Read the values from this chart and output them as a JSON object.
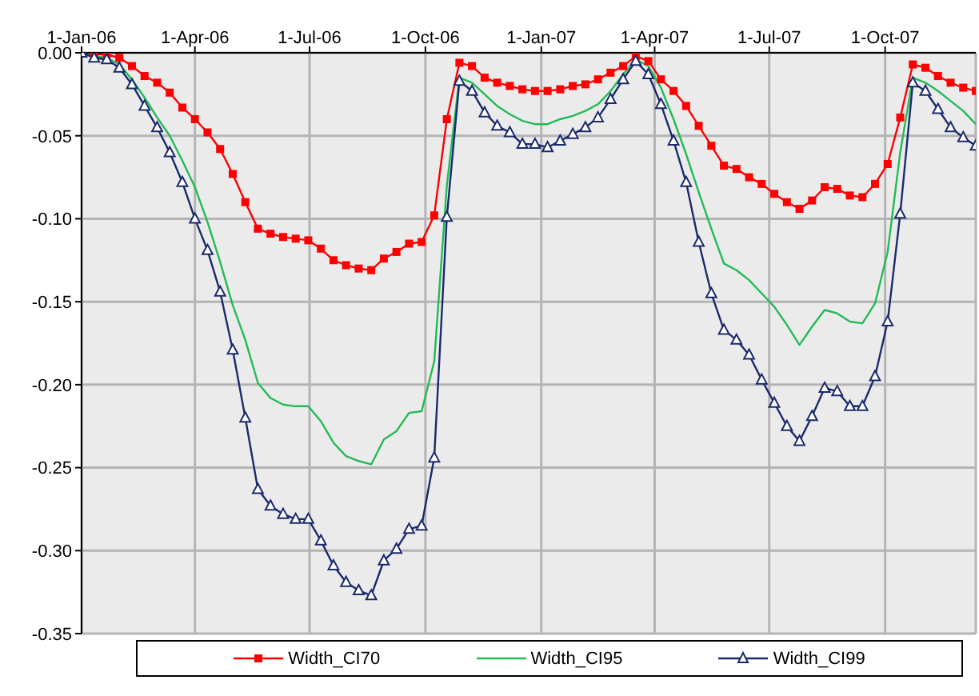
{
  "chart_data": {
    "type": "line",
    "x": [
      "2006-01-01",
      "2006-01-11",
      "2006-01-21",
      "2006-01-31",
      "2006-02-10",
      "2006-02-20",
      "2006-03-02",
      "2006-03-12",
      "2006-03-22",
      "2006-04-01",
      "2006-04-11",
      "2006-04-21",
      "2006-05-01",
      "2006-05-11",
      "2006-05-21",
      "2006-05-31",
      "2006-06-10",
      "2006-06-20",
      "2006-06-30",
      "2006-07-10",
      "2006-07-20",
      "2006-07-30",
      "2006-08-09",
      "2006-08-19",
      "2006-08-29",
      "2006-09-08",
      "2006-09-18",
      "2006-09-28",
      "2006-10-08",
      "2006-10-18",
      "2006-10-28",
      "2006-11-07",
      "2006-11-17",
      "2006-11-27",
      "2006-12-07",
      "2006-12-17",
      "2006-12-27",
      "2007-01-06",
      "2007-01-16",
      "2007-01-26",
      "2007-02-05",
      "2007-02-15",
      "2007-02-25",
      "2007-03-07",
      "2007-03-17",
      "2007-03-27",
      "2007-04-06",
      "2007-04-16",
      "2007-04-26",
      "2007-05-06",
      "2007-05-16",
      "2007-05-26",
      "2007-06-05",
      "2007-06-15",
      "2007-06-25",
      "2007-07-05",
      "2007-07-15",
      "2007-07-25",
      "2007-08-04",
      "2007-08-14",
      "2007-08-24",
      "2007-09-03",
      "2007-09-13",
      "2007-09-23",
      "2007-10-03",
      "2007-10-13",
      "2007-10-23",
      "2007-11-02",
      "2007-11-12",
      "2007-11-22",
      "2007-12-02",
      "2007-12-12"
    ],
    "series": [
      {
        "name": "Width_CI70",
        "color": "#ff0000",
        "marker": "square",
        "values": [
          0,
          -0.001,
          -0.001,
          -0.003,
          -0.008,
          -0.014,
          -0.018,
          -0.024,
          -0.033,
          -0.04,
          -0.048,
          -0.058,
          -0.073,
          -0.09,
          -0.106,
          -0.109,
          -0.111,
          -0.112,
          -0.113,
          -0.118,
          -0.125,
          -0.128,
          -0.13,
          -0.131,
          -0.124,
          -0.12,
          -0.115,
          -0.114,
          -0.098,
          -0.04,
          -0.006,
          -0.008,
          -0.015,
          -0.018,
          -0.02,
          -0.022,
          -0.023,
          -0.023,
          -0.022,
          -0.02,
          -0.019,
          -0.016,
          -0.012,
          -0.008,
          -0.002,
          -0.005,
          -0.016,
          -0.023,
          -0.032,
          -0.044,
          -0.056,
          -0.068,
          -0.07,
          -0.075,
          -0.079,
          -0.085,
          -0.09,
          -0.094,
          -0.089,
          -0.081,
          -0.082,
          -0.086,
          -0.087,
          -0.079,
          -0.067,
          -0.039,
          -0.007,
          -0.009,
          -0.014,
          -0.018,
          -0.021,
          -0.023
        ]
      },
      {
        "name": "Width_CI95",
        "color": "#22bb55",
        "marker": "none",
        "values": [
          0,
          -0.002,
          -0.003,
          -0.007,
          -0.016,
          -0.027,
          -0.039,
          -0.05,
          -0.065,
          -0.081,
          -0.102,
          -0.126,
          -0.152,
          -0.173,
          -0.199,
          -0.208,
          -0.212,
          -0.213,
          -0.213,
          -0.222,
          -0.235,
          -0.243,
          -0.246,
          -0.248,
          -0.233,
          -0.228,
          -0.217,
          -0.216,
          -0.186,
          -0.08,
          -0.015,
          -0.018,
          -0.025,
          -0.032,
          -0.037,
          -0.041,
          -0.043,
          -0.043,
          -0.04,
          -0.038,
          -0.035,
          -0.031,
          -0.023,
          -0.013,
          -0.004,
          -0.008,
          -0.021,
          -0.04,
          -0.061,
          -0.084,
          -0.106,
          -0.127,
          -0.131,
          -0.137,
          -0.145,
          -0.153,
          -0.164,
          -0.176,
          -0.165,
          -0.155,
          -0.157,
          -0.162,
          -0.163,
          -0.151,
          -0.12,
          -0.06,
          -0.015,
          -0.018,
          -0.023,
          -0.029,
          -0.035,
          -0.043
        ]
      },
      {
        "name": "Width_CI99",
        "color": "#1a2a6c",
        "marker": "triangle",
        "values": [
          0,
          -0.003,
          -0.004,
          -0.009,
          -0.019,
          -0.032,
          -0.045,
          -0.06,
          -0.078,
          -0.1,
          -0.119,
          -0.144,
          -0.179,
          -0.22,
          -0.263,
          -0.273,
          -0.278,
          -0.281,
          -0.281,
          -0.294,
          -0.309,
          -0.319,
          -0.324,
          -0.327,
          -0.306,
          -0.299,
          -0.287,
          -0.285,
          -0.244,
          -0.099,
          -0.017,
          -0.023,
          -0.036,
          -0.044,
          -0.048,
          -0.055,
          -0.055,
          -0.057,
          -0.053,
          -0.049,
          -0.045,
          -0.039,
          -0.028,
          -0.016,
          -0.005,
          -0.013,
          -0.031,
          -0.053,
          -0.078,
          -0.114,
          -0.145,
          -0.167,
          -0.173,
          -0.182,
          -0.197,
          -0.211,
          -0.225,
          -0.234,
          -0.219,
          -0.202,
          -0.204,
          -0.213,
          -0.213,
          -0.195,
          -0.162,
          -0.097,
          -0.018,
          -0.023,
          -0.034,
          -0.045,
          -0.051,
          -0.056
        ]
      }
    ],
    "xlim": [
      "2006-01-01",
      "2007-12-12"
    ],
    "xticks": [
      {
        "value": "2006-01-01",
        "label": "1-Jan-06"
      },
      {
        "value": "2006-04-01",
        "label": "1-Apr-06"
      },
      {
        "value": "2006-07-01",
        "label": "1-Jul-06"
      },
      {
        "value": "2006-10-01",
        "label": "1-Oct-06"
      },
      {
        "value": "2007-01-01",
        "label": "1-Jan-07"
      },
      {
        "value": "2007-04-01",
        "label": "1-Apr-07"
      },
      {
        "value": "2007-07-01",
        "label": "1-Jul-07"
      },
      {
        "value": "2007-10-01",
        "label": "1-Oct-07"
      }
    ],
    "ylim": [
      -0.35,
      0
    ],
    "yticks": [
      {
        "value": 0,
        "label": "0.00"
      },
      {
        "value": -0.05,
        "label": "-0.05"
      },
      {
        "value": -0.1,
        "label": "-0.10"
      },
      {
        "value": -0.15,
        "label": "-0.15"
      },
      {
        "value": -0.2,
        "label": "-0.20"
      },
      {
        "value": -0.25,
        "label": "-0.25"
      },
      {
        "value": -0.3,
        "label": "-0.30"
      },
      {
        "value": -0.35,
        "label": "-0.35"
      }
    ],
    "grid": true,
    "legend": "bottom"
  }
}
